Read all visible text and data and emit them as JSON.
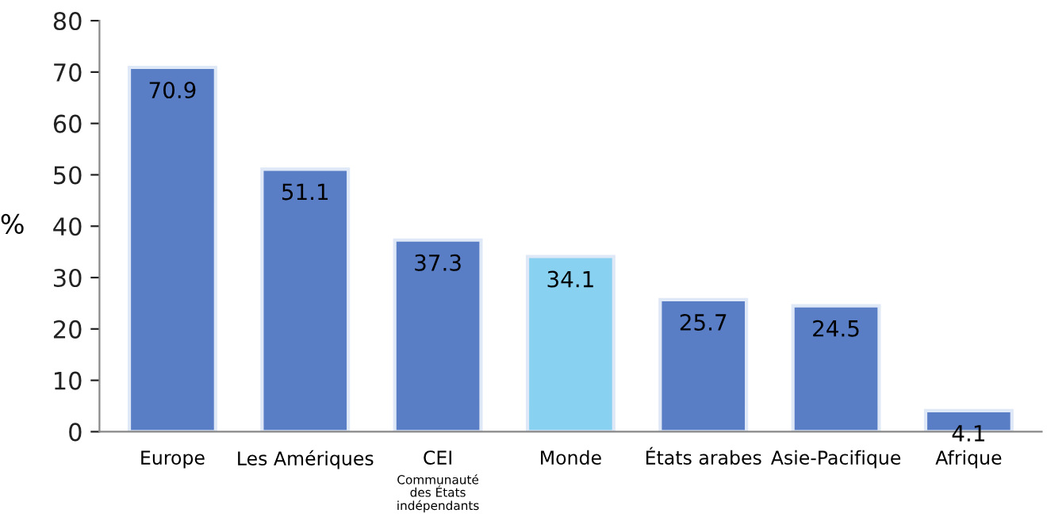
{
  "chart_data": {
    "type": "bar",
    "ylabel": "%",
    "categories": [
      "Europe",
      "Les Amériques",
      "CEI\nCommunauté\ndes États\nindépendants",
      "Monde",
      "États arabes",
      "Asie-Pacifique",
      "Afrique"
    ],
    "values": [
      70.9,
      51.1,
      37.3,
      34.1,
      25.7,
      24.5,
      4.1
    ],
    "colors": [
      "#5a7ec6",
      "#5a7ec6",
      "#5a7ec6",
      "#88d1f1",
      "#5a7ec6",
      "#5a7ec6",
      "#5a7ec6"
    ],
    "ylim": [
      0,
      80
    ],
    "yticks": [
      0,
      10,
      20,
      30,
      40,
      50,
      60,
      70,
      80
    ],
    "data_labels": true,
    "grid": false,
    "legend": false
  }
}
